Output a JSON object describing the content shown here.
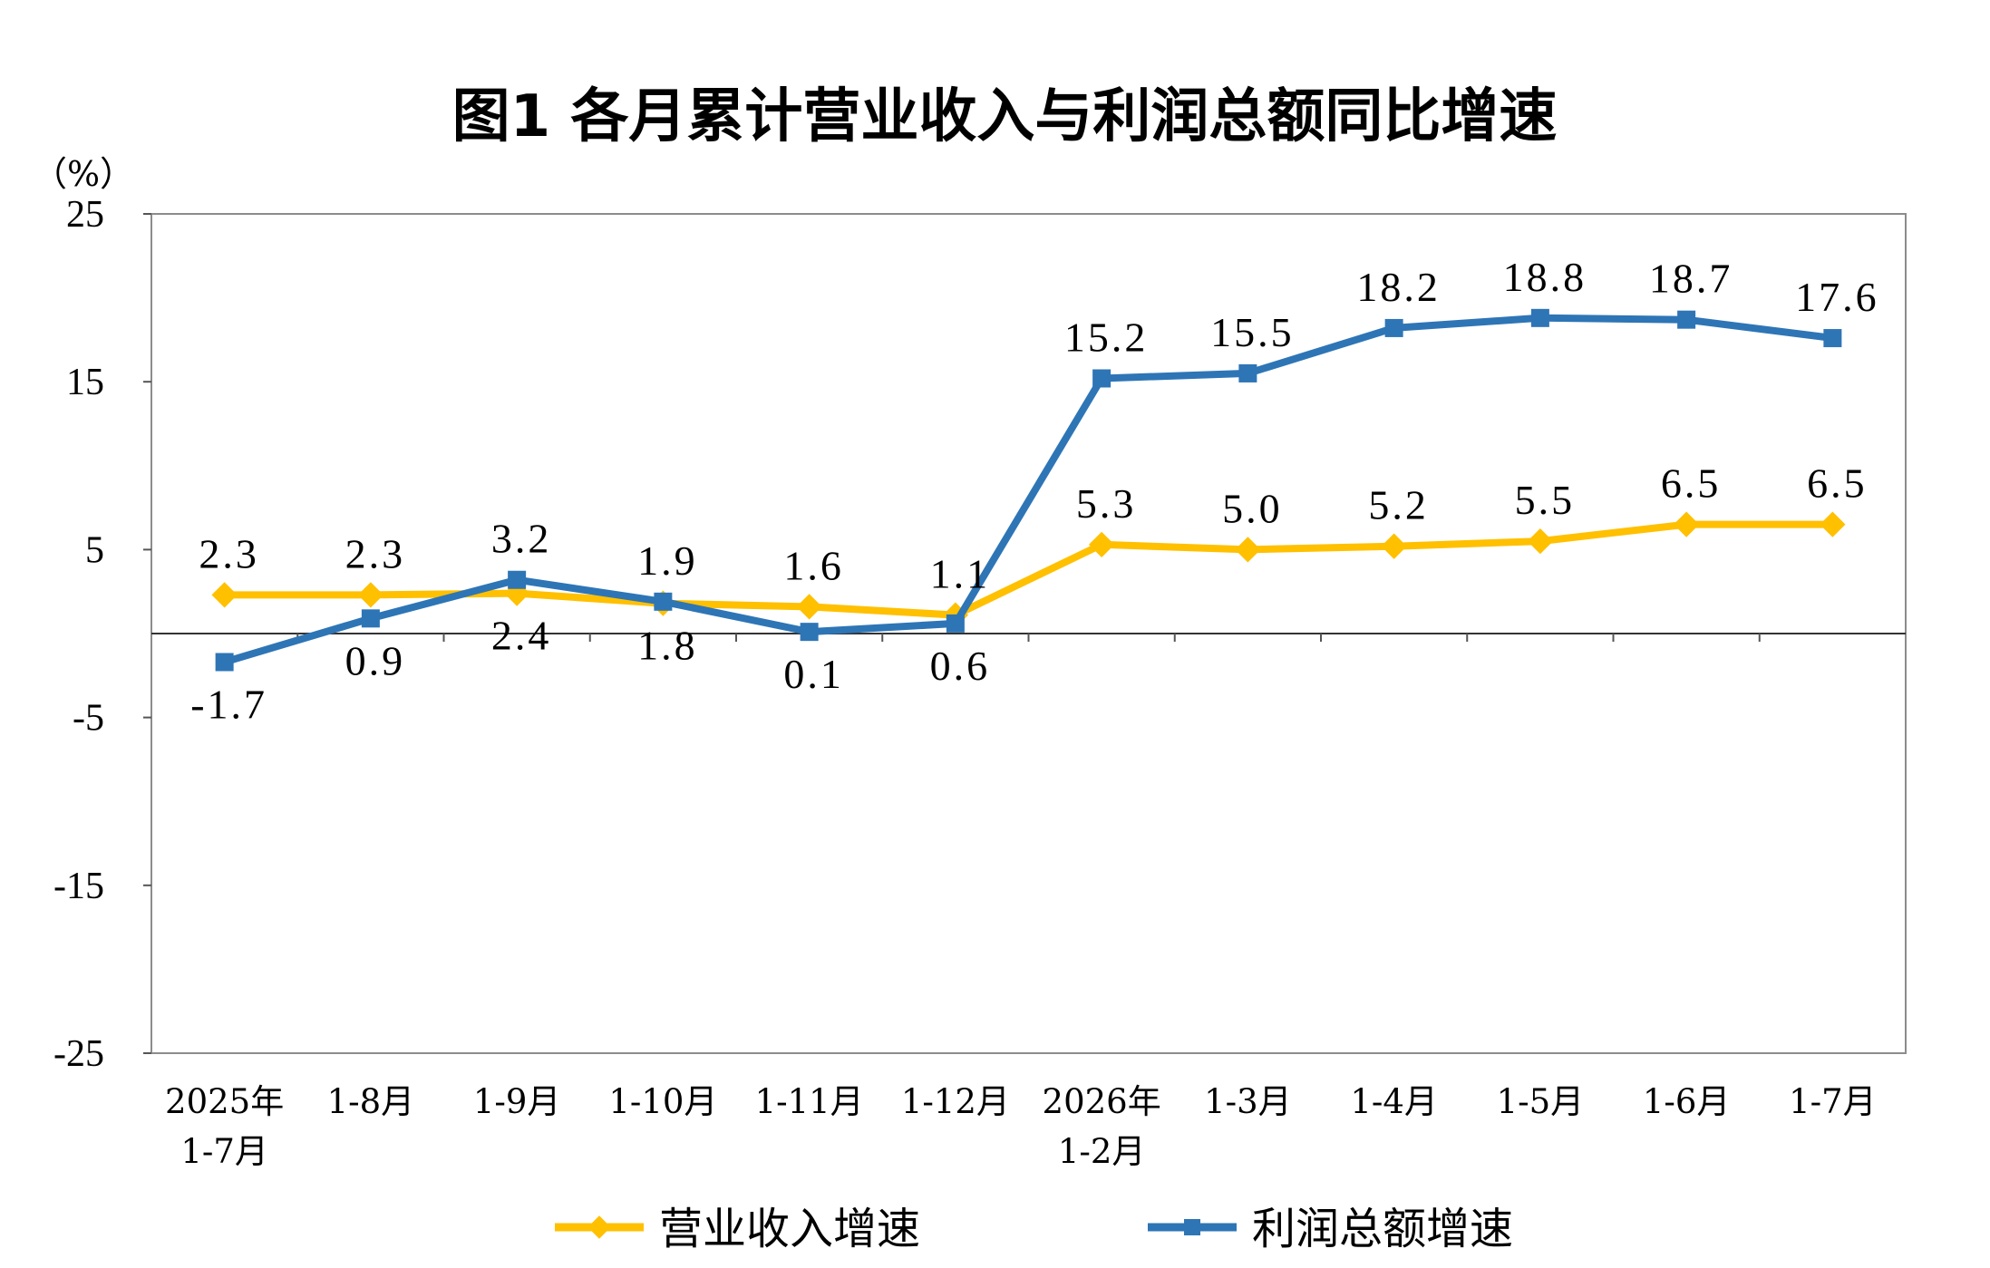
{
  "chart_data": {
    "type": "line",
    "title": "图1  各月累计营业收入与利润总额同比增速",
    "unit": "（%）",
    "ylim": [
      -25,
      25
    ],
    "yticks": [
      "25",
      "15",
      "5",
      "-5",
      "-15",
      "-25"
    ],
    "categories": [
      [
        "2025年",
        "1-7月"
      ],
      [
        "1-8月"
      ],
      [
        "1-9月"
      ],
      [
        "1-10月"
      ],
      [
        "1-11月"
      ],
      [
        "1-12月"
      ],
      [
        "2026年",
        "1-2月"
      ],
      [
        "1-3月"
      ],
      [
        "1-4月"
      ],
      [
        "1-5月"
      ],
      [
        "1-6月"
      ],
      [
        "1-7月"
      ]
    ],
    "series": [
      {
        "name": "营业收入增速",
        "color": "#FFC000",
        "marker": "diamond",
        "values": [
          2.3,
          2.3,
          2.4,
          1.8,
          1.6,
          1.1,
          5.3,
          5.0,
          5.2,
          5.5,
          6.5,
          6.5
        ],
        "labels": [
          "2.3",
          "2.3",
          "2.4",
          "1.8",
          "1.6",
          "1.1",
          "5.3",
          "5.0",
          "5.2",
          "5.5",
          "6.5",
          "6.5"
        ]
      },
      {
        "name": "利润总额增速",
        "color": "#2E75B6",
        "marker": "square",
        "values": [
          -1.7,
          0.9,
          3.2,
          1.9,
          0.1,
          0.6,
          15.2,
          15.5,
          18.2,
          18.8,
          18.7,
          17.6
        ],
        "labels": [
          "-1.7",
          "0.9",
          "3.2",
          "1.9",
          "0.1",
          "0.6",
          "15.2",
          "15.5",
          "18.2",
          "18.8",
          "18.7",
          "17.6"
        ]
      }
    ],
    "grid": false,
    "legend": "bottom"
  }
}
